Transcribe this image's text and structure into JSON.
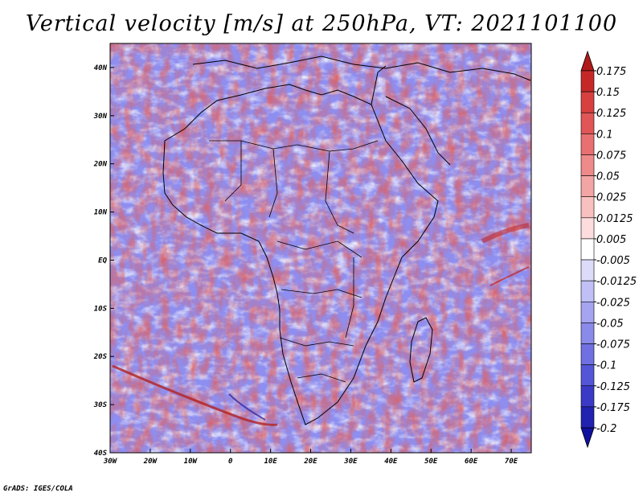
{
  "title": "Vertical velocity [m/s] at 250hPa, VT: 2021101100",
  "footer": "GrADS: IGES/COLA",
  "map": {
    "projection": "latlon",
    "lon_range": [
      -30,
      75
    ],
    "lat_range": [
      -40,
      45
    ],
    "lon_ticks": [
      "30W",
      "20W",
      "10W",
      "0",
      "10E",
      "20E",
      "30E",
      "40E",
      "50E",
      "60E",
      "70E"
    ],
    "lat_ticks": [
      "40N",
      "30N",
      "20N",
      "10N",
      "EQ",
      "10S",
      "20S",
      "30S",
      "40S"
    ],
    "field": "vertical velocity",
    "level": "250hPa",
    "units": "m/s",
    "valid_time": "2021101100"
  },
  "colorbar": {
    "levels": [
      "0.175",
      "0.15",
      "0.125",
      "0.1",
      "0.075",
      "0.05",
      "0.025",
      "0.0125",
      "0.005",
      "-0.005",
      "-0.0125",
      "-0.025",
      "-0.05",
      "-0.075",
      "-0.1",
      "-0.125",
      "-0.175",
      "-0.2"
    ],
    "colors": [
      "#b01a1a",
      "#c62828",
      "#d84040",
      "#e05555",
      "#e87070",
      "#ee8a8a",
      "#f3a4a4",
      "#f8c0c0",
      "#fcdcdc",
      "#ffffff",
      "#dcdcfa",
      "#c0c0f6",
      "#a4a4f0",
      "#8a8aea",
      "#7070e2",
      "#5555d8",
      "#3a3ac6",
      "#2222b0",
      "#1010a0"
    ]
  }
}
